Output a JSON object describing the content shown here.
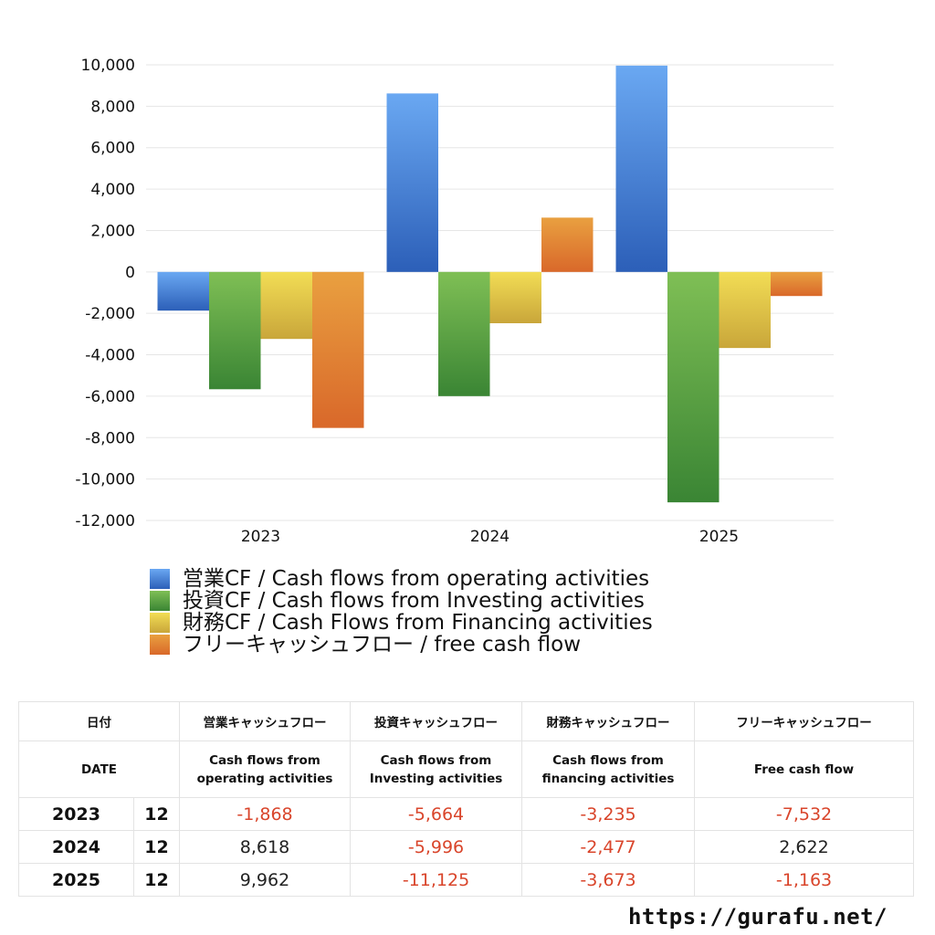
{
  "colors": {
    "operating": [
      "#6aa8f2",
      "#2c5fb8"
    ],
    "investing": [
      "#7fbf55",
      "#3a8534"
    ],
    "financing": [
      "#f2dd55",
      "#c9a63a"
    ],
    "free": [
      "#e9a040",
      "#d9682a"
    ],
    "negative_text": "#d9452b"
  },
  "chart_data": {
    "type": "bar",
    "categories": [
      "2023",
      "2024",
      "2025"
    ],
    "ylim": [
      -12000,
      10000
    ],
    "yticks": [
      "10,000",
      "8,000",
      "6,000",
      "4,000",
      "2,000",
      "0",
      "-2,000",
      "-4,000",
      "-6,000",
      "-8,000",
      "-10,000",
      "-12,000"
    ],
    "ytick_values": [
      10000,
      8000,
      6000,
      4000,
      2000,
      0,
      -2000,
      -4000,
      -6000,
      -8000,
      -10000,
      -12000
    ],
    "grid": true,
    "legend_position": "bottom",
    "series": [
      {
        "name": "営業CF / Cash flows from operating activities",
        "key": "operating",
        "values": [
          -1868,
          8618,
          9962
        ]
      },
      {
        "name": "投資CF / Cash flows from Investing activities",
        "key": "investing",
        "values": [
          -5664,
          -5996,
          -11125
        ]
      },
      {
        "name": "財務CF / Cash Flows from Financing activities",
        "key": "financing",
        "values": [
          -3235,
          -2477,
          -3673
        ]
      },
      {
        "name": "フリーキャッシュフロー / free cash flow",
        "key": "free",
        "values": [
          -7532,
          2622,
          -1163
        ]
      }
    ]
  },
  "table": {
    "header_jp": [
      "日付",
      "営業キャッシュフロー",
      "投資キャッシュフロー",
      "財務キャッシュフロー",
      "フリーキャッシュフロー"
    ],
    "header_en": [
      "DATE",
      "Cash flows from\noperating activities",
      "Cash flows from\nInvesting activities",
      "Cash flows from\nfinancing activities",
      "Free cash flow"
    ],
    "rows": [
      {
        "year": "2023",
        "month": "12",
        "operating": "-1,868",
        "investing": "-5,664",
        "financing": "-3,235",
        "free": "-7,532"
      },
      {
        "year": "2024",
        "month": "12",
        "operating": "8,618",
        "investing": "-5,996",
        "financing": "-2,477",
        "free": "2,622"
      },
      {
        "year": "2025",
        "month": "12",
        "operating": "9,962",
        "investing": "-11,125",
        "financing": "-3,673",
        "free": "-1,163"
      }
    ]
  },
  "footer": {
    "url": "https://gurafu.net/"
  }
}
